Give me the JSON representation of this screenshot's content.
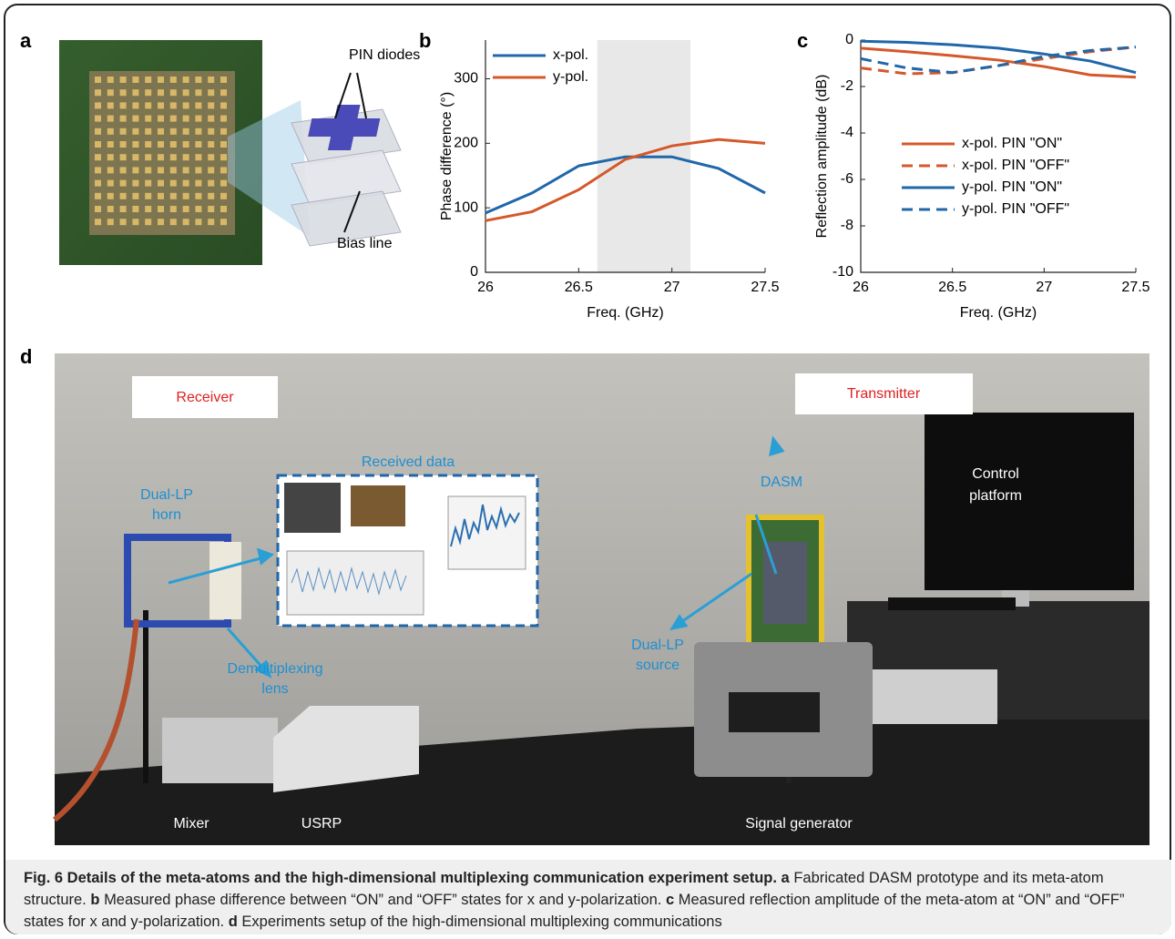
{
  "panel_a": {
    "label": "a",
    "pin_diodes": "PIN diodes",
    "bias_line": "Bias line"
  },
  "chart_data": [
    {
      "type": "line",
      "panel_label": "b",
      "xlabel": "Freq. (GHz)",
      "ylabel": "Phase difference (°)",
      "xlim": [
        26,
        27.5
      ],
      "xticks": [
        26,
        26.5,
        27,
        27.5
      ],
      "ylim": [
        0,
        360
      ],
      "yticks": [
        0,
        100,
        200,
        300
      ],
      "shaded_region": [
        26.6,
        27.1
      ],
      "legend": "upper left",
      "x": [
        26,
        26.25,
        26.5,
        26.75,
        27,
        27.25,
        27.5
      ],
      "series": [
        {
          "name": "x-pol.",
          "color": "#1f67aa",
          "dashed": false,
          "values": [
            92,
            123,
            165,
            179,
            179,
            161,
            123
          ]
        },
        {
          "name": "y-pol.",
          "color": "#d4582a",
          "dashed": false,
          "values": [
            80,
            94,
            128,
            175,
            196,
            206,
            200
          ]
        }
      ]
    },
    {
      "type": "line",
      "panel_label": "c",
      "xlabel": "Freq. (GHz)",
      "ylabel": "Reflection amplitude (dB)",
      "xlim": [
        26,
        27.5
      ],
      "xticks": [
        26,
        26.5,
        27,
        27.5
      ],
      "ylim": [
        -10,
        0
      ],
      "yticks": [
        0,
        -2,
        -4,
        -6,
        -8,
        -10
      ],
      "legend": "center",
      "x": [
        26,
        26.25,
        26.5,
        26.75,
        27,
        27.25,
        27.5
      ],
      "series": [
        {
          "name": "x-pol. PIN \"ON\"",
          "color": "#d4582a",
          "dashed": false,
          "values": [
            -0.35,
            -0.5,
            -0.67,
            -0.86,
            -1.14,
            -1.5,
            -1.6
          ]
        },
        {
          "name": "x-pol. PIN \"OFF\"",
          "color": "#d4582a",
          "dashed": true,
          "values": [
            -1.2,
            -1.45,
            -1.4,
            -1.1,
            -0.8,
            -0.5,
            -0.3
          ]
        },
        {
          "name": "y-pol. PIN \"ON\"",
          "color": "#1f67aa",
          "dashed": false,
          "values": [
            -0.05,
            -0.1,
            -0.2,
            -0.35,
            -0.6,
            -0.9,
            -1.4
          ]
        },
        {
          "name": "y-pol. PIN \"OFF\"",
          "color": "#1f67aa",
          "dashed": true,
          "values": [
            -0.8,
            -1.2,
            -1.4,
            -1.1,
            -0.7,
            -0.45,
            -0.3
          ]
        }
      ]
    }
  ],
  "panel_d": {
    "label": "d",
    "receiver": "Receiver",
    "transmitter": "Transmitter",
    "received_data": "Received data",
    "horn": [
      "Dual-LP",
      "horn"
    ],
    "lens": [
      "Demultiplexing",
      "lens"
    ],
    "dasm": "DASM",
    "control": [
      "Control",
      "platform"
    ],
    "source": [
      "Dual-LP",
      "source"
    ],
    "mixer": "Mixer",
    "usrp": "USRP",
    "signal_generator": "Signal generator"
  },
  "caption": {
    "title": "Fig. 6 Details of the meta-atoms and the high-dimensional multiplexing communication experiment setup.",
    "items": [
      {
        "label": "a",
        "text": "Fabricated DASM prototype and its meta-atom structure."
      },
      {
        "label": "b",
        "text": "Measured phase difference between “ON” and “OFF” states for x and y-polarization."
      },
      {
        "label": "c",
        "text": "Measured reflection amplitude of the meta-atom at “ON” and “OFF” states for x and y-polarization."
      },
      {
        "label": "d",
        "text": "Experiments setup of the high-dimensional multiplexing communications"
      }
    ]
  }
}
